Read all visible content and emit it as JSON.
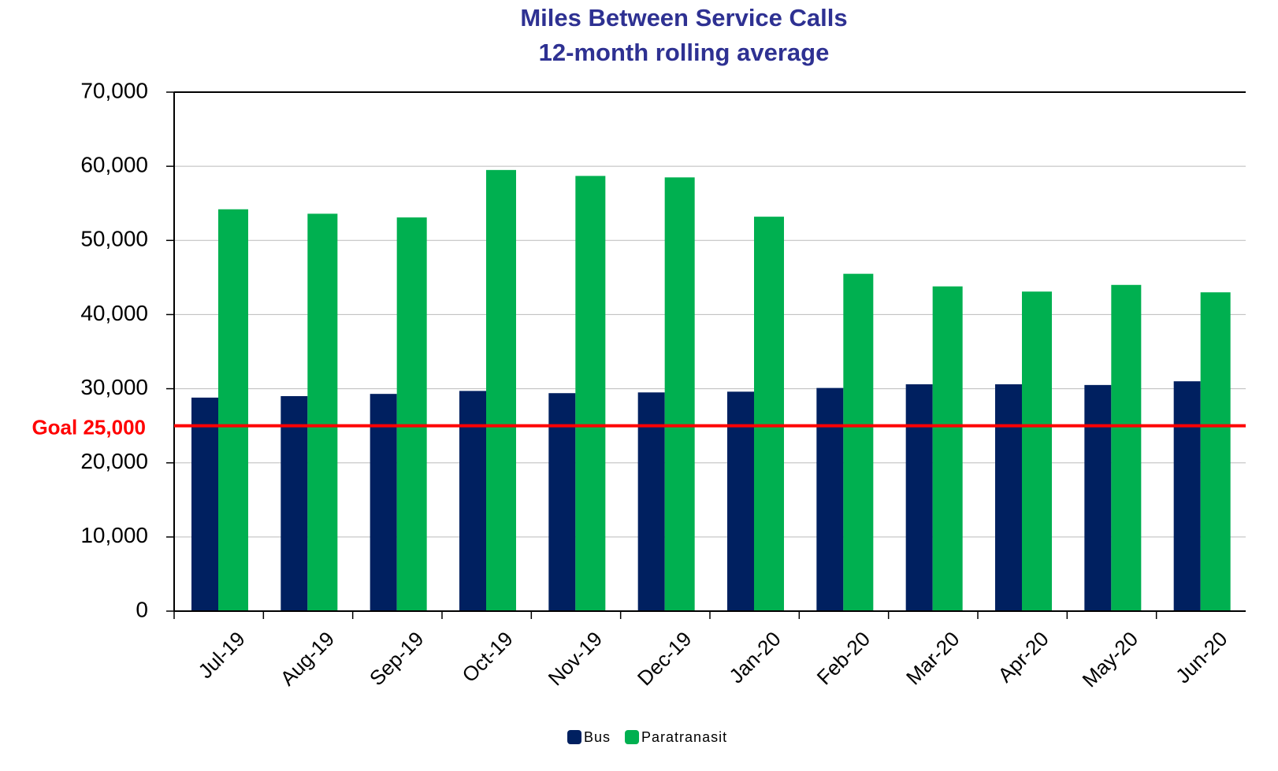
{
  "chart_data": {
    "type": "bar",
    "title": "Miles Between Service Calls",
    "subtitle": "12-month rolling average",
    "categories": [
      "Jul-19",
      "Aug-19",
      "Sep-19",
      "Oct-19",
      "Nov-19",
      "Dec-19",
      "Jan-20",
      "Feb-20",
      "Mar-20",
      "Apr-20",
      "May-20",
      "Jun-20"
    ],
    "series": [
      {
        "name": "Bus",
        "color": "#002060",
        "values": [
          28800,
          29000,
          29300,
          29700,
          29400,
          29500,
          29600,
          30100,
          30600,
          30600,
          30500,
          31000
        ]
      },
      {
        "name": "Paratranasit",
        "color": "#00b050",
        "values": [
          54200,
          53600,
          53100,
          59500,
          58700,
          58500,
          53200,
          45500,
          43800,
          43100,
          44000,
          43000
        ]
      }
    ],
    "ylim": [
      0,
      70000
    ],
    "yticks": [
      0,
      {
        "value": 10000,
        "label": "10,000"
      },
      {
        "value": 20000,
        "label": "20,000"
      },
      {
        "value": 30000,
        "label": "30,000"
      },
      {
        "value": 40000,
        "label": "40,000"
      },
      {
        "value": 50000,
        "label": "50,000"
      },
      {
        "value": 60000,
        "label": "60,000"
      },
      {
        "value": 70000,
        "label": "70,000"
      }
    ],
    "grid": true,
    "goal": {
      "value": 25000,
      "label": "Goal 25,000",
      "color": "#ff0000"
    },
    "legend": "bottom"
  }
}
